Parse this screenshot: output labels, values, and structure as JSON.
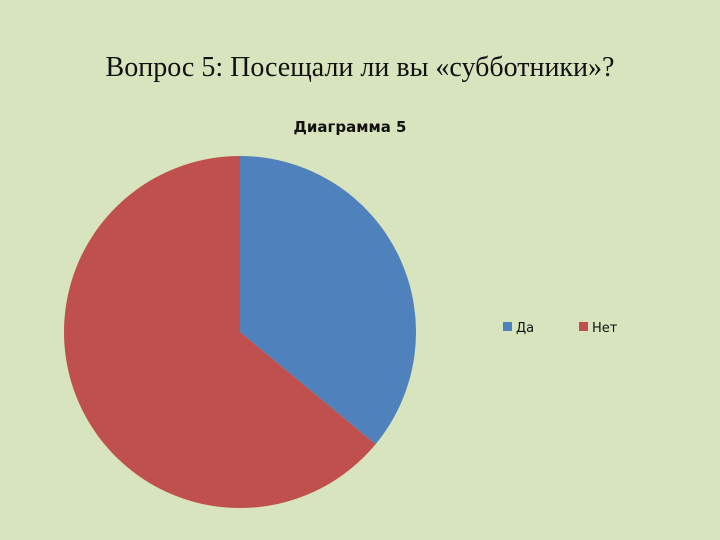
{
  "slide": {
    "title": "Вопрос 5: Посещали ли вы «субботники»?"
  },
  "chart_data": {
    "type": "pie",
    "title": "Диаграмма 5",
    "categories": [
      "Да",
      "Нет"
    ],
    "values": [
      36,
      64
    ],
    "colors": [
      "#4f81bd",
      "#c0504d"
    ],
    "start_angle_deg": 0,
    "direction": "clockwise",
    "legend_position": "right"
  }
}
